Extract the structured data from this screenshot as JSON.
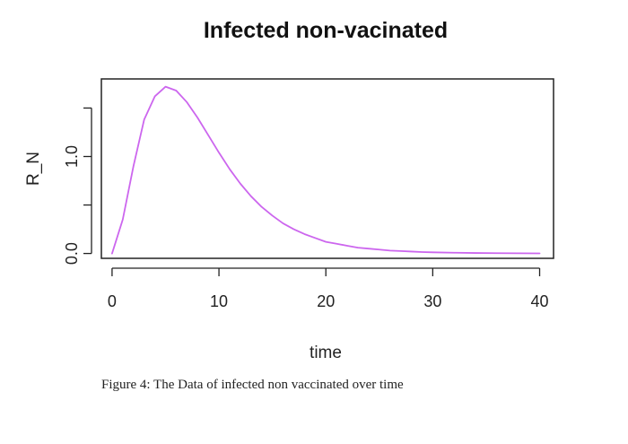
{
  "chart_data": {
    "type": "line",
    "title": "Infected non-vacinated",
    "xlabel": "time",
    "ylabel": "R_N",
    "xlim": [
      -1,
      41.3
    ],
    "ylim": [
      -0.05,
      1.8
    ],
    "x_ticks": [
      0,
      10,
      20,
      30,
      40
    ],
    "x_tick_labels": [
      "0",
      "10",
      "20",
      "30",
      "40"
    ],
    "y_ticks": [
      0.0,
      0.5,
      1.0,
      1.5
    ],
    "y_tick_labels": [
      "0.0",
      "",
      "1.0",
      ""
    ],
    "grid": false,
    "series": [
      {
        "name": "R_N",
        "color": "#cc66ee",
        "x": [
          0,
          1,
          2,
          3,
          4,
          5,
          6,
          7,
          8,
          9,
          10,
          11,
          12,
          13,
          14,
          15,
          16,
          17,
          18,
          19,
          20,
          21,
          22,
          23,
          24,
          25,
          26,
          27,
          28,
          29,
          30,
          32,
          34,
          36,
          38,
          40
        ],
        "y": [
          0.0,
          0.35,
          0.9,
          1.38,
          1.62,
          1.72,
          1.68,
          1.56,
          1.4,
          1.22,
          1.04,
          0.87,
          0.72,
          0.59,
          0.48,
          0.39,
          0.31,
          0.25,
          0.2,
          0.16,
          0.12,
          0.1,
          0.08,
          0.06,
          0.05,
          0.04,
          0.03,
          0.025,
          0.02,
          0.015,
          0.012,
          0.008,
          0.005,
          0.003,
          0.002,
          0.001
        ]
      }
    ]
  },
  "caption": "Figure 4:  The Data of infected non vaccinated over time"
}
